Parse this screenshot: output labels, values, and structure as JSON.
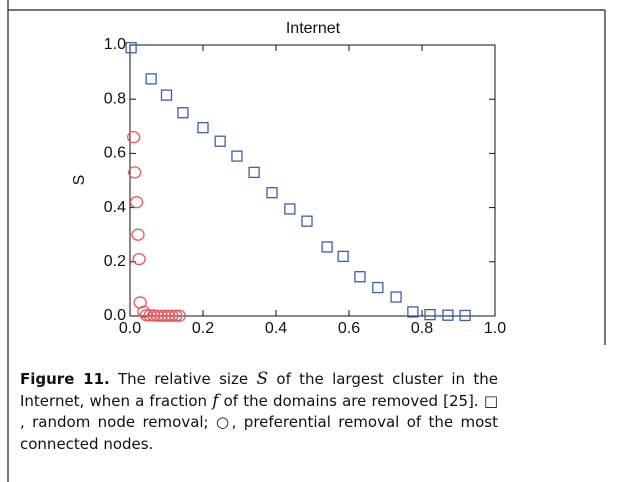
{
  "chart_data": {
    "type": "scatter",
    "title": "Internet",
    "y_label": "S",
    "xlim": [
      0,
      1
    ],
    "ylim": [
      0,
      1
    ],
    "xticks": [
      {
        "value": 0,
        "label": "0.0"
      },
      {
        "value": 0.2,
        "label": "0.2"
      },
      {
        "value": 0.4,
        "label": "0.4"
      },
      {
        "value": 0.6,
        "label": "0.6"
      },
      {
        "value": 0.8,
        "label": "0.8"
      },
      {
        "value": 1,
        "label": "1.0"
      }
    ],
    "yticks": [
      {
        "value": 0,
        "label": "0.0"
      },
      {
        "value": 0.2,
        "label": "0.2"
      },
      {
        "value": 0.4,
        "label": "0.4"
      },
      {
        "value": 0.6,
        "label": "0.6"
      },
      {
        "value": 0.8,
        "label": "0.8"
      },
      {
        "value": 1,
        "label": "1.0"
      }
    ],
    "series": [
      {
        "marker": "square",
        "color": "#3a5fad",
        "x": [
          0.003,
          0.058,
          0.1,
          0.145,
          0.2,
          0.247,
          0.293,
          0.34,
          0.389,
          0.438,
          0.485,
          0.54,
          0.584,
          0.63,
          0.679,
          0.729,
          0.775,
          0.822,
          0.871,
          0.918
        ],
        "values": [
          0.99,
          0.875,
          0.815,
          0.75,
          0.695,
          0.645,
          0.59,
          0.53,
          0.455,
          0.395,
          0.35,
          0.255,
          0.22,
          0.145,
          0.105,
          0.07,
          0.015,
          0.005,
          0.003,
          0.002
        ]
      },
      {
        "marker": "circle",
        "color": "#e8585e",
        "x": [
          0.01,
          0.013,
          0.018,
          0.022,
          0.025,
          0.028,
          0.038,
          0.045,
          0.055,
          0.065,
          0.075,
          0.085,
          0.095,
          0.105,
          0.115,
          0.125,
          0.135
        ],
        "values": [
          0.66,
          0.53,
          0.42,
          0.3,
          0.21,
          0.05,
          0.015,
          0.003,
          0.002,
          0.002,
          0.001,
          0.001,
          0.001,
          0.001,
          0.001,
          0.001,
          0.001
        ]
      }
    ]
  },
  "caption": {
    "label": "Figure 11.",
    "segments": [
      "The relative size ",
      "S",
      " of the largest cluster in the Internet, when a fraction ",
      "f",
      " of the domains are removed [25]. ",
      "□",
      " , random node removal; ",
      "○",
      ", preferential removal of the most connected nodes."
    ]
  }
}
